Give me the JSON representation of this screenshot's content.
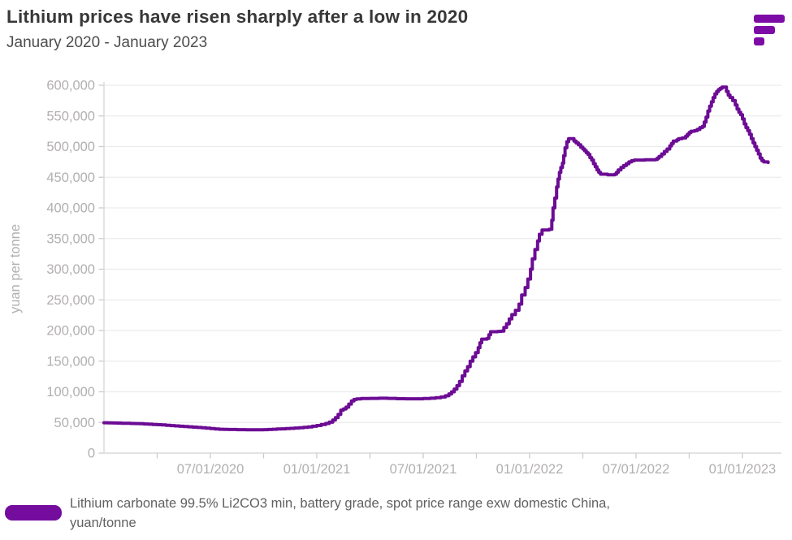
{
  "header": {
    "logo_icon": "fastmarkets-bars-logo",
    "logo_color": "#7d0ba6"
  },
  "chart_data": {
    "type": "line",
    "step": true,
    "title": "Lithium prices have risen sharply after a low in 2020",
    "subtitle": "January 2020 - January 2023",
    "xlabel": "",
    "ylabel": "yuan per tonne",
    "ylim": [
      0,
      600000
    ],
    "ytick_step": 50000,
    "ytick_labels": [
      "0",
      "50,000",
      "100,000",
      "150,000",
      "200,000",
      "250,000",
      "300,000",
      "350,000",
      "400,000",
      "450,000",
      "500,000",
      "550,000",
      "600,000"
    ],
    "x_ticks": [
      {
        "month": 6,
        "label": "07/01/2020"
      },
      {
        "month": 12,
        "label": "01/01/2021"
      },
      {
        "month": 18,
        "label": "07/01/2021"
      },
      {
        "month": 24,
        "label": "01/01/2022"
      },
      {
        "month": 30,
        "label": "07/01/2022"
      },
      {
        "month": 36,
        "label": "01/01/2023"
      }
    ],
    "x_minor_tick_every_months": 3,
    "x_domain_months": [
      0,
      38.2
    ],
    "grid": "horizontal",
    "legend_position": "bottom",
    "legend": {
      "line1": "Lithium carbonate 99.5% Li2CO3 min, battery grade, spot price range exw domestic China,",
      "line2": "yuan/tonne",
      "swatch_color": "#740c9e"
    },
    "series": [
      {
        "name": "Lithium carbonate 99.5% Li2CO3 min, battery grade, spot price range exw domestic China, yuan/tonne",
        "color": "#6c0c94",
        "points_month_value": [
          [
            0,
            49500
          ],
          [
            0.25,
            49300
          ],
          [
            0.5,
            49200
          ],
          [
            0.75,
            49000
          ],
          [
            1,
            48800
          ],
          [
            1.25,
            48600
          ],
          [
            1.5,
            48400
          ],
          [
            1.75,
            48200
          ],
          [
            2,
            48000
          ],
          [
            2.25,
            47600
          ],
          [
            2.5,
            47200
          ],
          [
            2.75,
            46800
          ],
          [
            3,
            46400
          ],
          [
            3.25,
            45900
          ],
          [
            3.5,
            45400
          ],
          [
            3.75,
            44900
          ],
          [
            4,
            44400
          ],
          [
            4.25,
            43900
          ],
          [
            4.5,
            43400
          ],
          [
            4.75,
            42900
          ],
          [
            5,
            42400
          ],
          [
            5.25,
            41900
          ],
          [
            5.5,
            41400
          ],
          [
            5.75,
            40700
          ],
          [
            6,
            40000
          ],
          [
            6.25,
            39400
          ],
          [
            6.5,
            39000
          ],
          [
            6.75,
            38700
          ],
          [
            7,
            38500
          ],
          [
            7.5,
            38300
          ],
          [
            8,
            38200
          ],
          [
            8.5,
            38200
          ],
          [
            9,
            38300
          ],
          [
            9.25,
            38600
          ],
          [
            9.5,
            39000
          ],
          [
            9.75,
            39300
          ],
          [
            10,
            39600
          ],
          [
            10.25,
            40000
          ],
          [
            10.5,
            40400
          ],
          [
            10.75,
            40900
          ],
          [
            11,
            41400
          ],
          [
            11.25,
            42000
          ],
          [
            11.5,
            42800
          ],
          [
            11.75,
            43800
          ],
          [
            12,
            45000
          ],
          [
            12.25,
            46600
          ],
          [
            12.5,
            48400
          ],
          [
            12.7,
            50400
          ],
          [
            12.9,
            54000
          ],
          [
            13.05,
            58000
          ],
          [
            13.2,
            63000
          ],
          [
            13.35,
            70000
          ],
          [
            13.5,
            72000
          ],
          [
            13.65,
            75000
          ],
          [
            13.8,
            80000
          ],
          [
            13.95,
            85000
          ],
          [
            14.1,
            87500
          ],
          [
            14.25,
            88500
          ],
          [
            14.5,
            89000
          ],
          [
            15,
            89300
          ],
          [
            15.5,
            89500
          ],
          [
            16,
            89300
          ],
          [
            16.5,
            88800
          ],
          [
            17,
            88600
          ],
          [
            17.5,
            88600
          ],
          [
            18,
            89000
          ],
          [
            18.4,
            89600
          ],
          [
            18.7,
            90500
          ],
          [
            19,
            91500
          ],
          [
            19.25,
            93500
          ],
          [
            19.45,
            96500
          ],
          [
            19.6,
            100000
          ],
          [
            19.75,
            104500
          ],
          [
            19.9,
            110000
          ],
          [
            20.05,
            117000
          ],
          [
            20.2,
            126000
          ],
          [
            20.35,
            134000
          ],
          [
            20.5,
            141000
          ],
          [
            20.65,
            150000
          ],
          [
            20.8,
            157000
          ],
          [
            20.95,
            164000
          ],
          [
            21.1,
            172000
          ],
          [
            21.2,
            180000
          ],
          [
            21.3,
            186000
          ],
          [
            21.6,
            187000
          ],
          [
            21.7,
            193000
          ],
          [
            21.8,
            198000
          ],
          [
            22.2,
            198500
          ],
          [
            22.4,
            199000
          ],
          [
            22.55,
            205000
          ],
          [
            22.7,
            211000
          ],
          [
            22.85,
            219000
          ],
          [
            23,
            226000
          ],
          [
            23.2,
            233000
          ],
          [
            23.4,
            243000
          ],
          [
            23.55,
            258000
          ],
          [
            23.75,
            270000
          ],
          [
            23.9,
            284000
          ],
          [
            24.05,
            300000
          ],
          [
            24.15,
            317000
          ],
          [
            24.3,
            332000
          ],
          [
            24.45,
            346000
          ],
          [
            24.55,
            357000
          ],
          [
            24.7,
            364000
          ],
          [
            25.1,
            365000
          ],
          [
            25.25,
            380000
          ],
          [
            25.32,
            400000
          ],
          [
            25.42,
            416000
          ],
          [
            25.52,
            434000
          ],
          [
            25.6,
            447000
          ],
          [
            25.68,
            458000
          ],
          [
            25.76,
            466000
          ],
          [
            25.85,
            473000
          ],
          [
            25.92,
            485000
          ],
          [
            26,
            498000
          ],
          [
            26.1,
            508000
          ],
          [
            26.2,
            513000
          ],
          [
            26.35,
            513000
          ],
          [
            26.5,
            509000
          ],
          [
            26.62,
            506000
          ],
          [
            26.75,
            503000
          ],
          [
            26.88,
            499000
          ],
          [
            27,
            496000
          ],
          [
            27.1,
            493000
          ],
          [
            27.2,
            490000
          ],
          [
            27.3,
            487000
          ],
          [
            27.4,
            482000
          ],
          [
            27.5,
            478000
          ],
          [
            27.6,
            472000
          ],
          [
            27.7,
            467000
          ],
          [
            27.8,
            462000
          ],
          [
            27.9,
            458000
          ],
          [
            28,
            455000
          ],
          [
            28.4,
            454000
          ],
          [
            28.8,
            455000
          ],
          [
            28.9,
            458000
          ],
          [
            29,
            462000
          ],
          [
            29.15,
            466000
          ],
          [
            29.3,
            469000
          ],
          [
            29.45,
            472000
          ],
          [
            29.6,
            475000
          ],
          [
            29.75,
            477000
          ],
          [
            29.9,
            478000
          ],
          [
            30.5,
            478500
          ],
          [
            31.1,
            479000
          ],
          [
            31.2,
            481000
          ],
          [
            31.3,
            484000
          ],
          [
            31.45,
            488000
          ],
          [
            31.6,
            492000
          ],
          [
            31.75,
            496000
          ],
          [
            31.9,
            501000
          ],
          [
            32,
            505000
          ],
          [
            32.1,
            509000
          ],
          [
            32.3,
            511000
          ],
          [
            32.4,
            513000
          ],
          [
            32.6,
            514000
          ],
          [
            32.8,
            517000
          ],
          [
            32.9,
            520000
          ],
          [
            33,
            523000
          ],
          [
            33.1,
            525000
          ],
          [
            33.3,
            526000
          ],
          [
            33.45,
            528000
          ],
          [
            33.6,
            531000
          ],
          [
            33.75,
            533000
          ],
          [
            33.85,
            540000
          ],
          [
            33.95,
            548000
          ],
          [
            34.05,
            558000
          ],
          [
            34.15,
            566000
          ],
          [
            34.25,
            573000
          ],
          [
            34.35,
            580000
          ],
          [
            34.45,
            586000
          ],
          [
            34.55,
            590000
          ],
          [
            34.65,
            593000
          ],
          [
            34.75,
            595000
          ],
          [
            34.85,
            597000
          ],
          [
            35,
            597000
          ],
          [
            35.1,
            590000
          ],
          [
            35.2,
            584000
          ],
          [
            35.3,
            580000
          ],
          [
            35.45,
            575000
          ],
          [
            35.6,
            568000
          ],
          [
            35.7,
            561000
          ],
          [
            35.8,
            556000
          ],
          [
            35.9,
            552000
          ],
          [
            36,
            545000
          ],
          [
            36.1,
            537000
          ],
          [
            36.2,
            531000
          ],
          [
            36.3,
            526000
          ],
          [
            36.4,
            520000
          ],
          [
            36.5,
            513000
          ],
          [
            36.6,
            506000
          ],
          [
            36.7,
            500000
          ],
          [
            36.8,
            494000
          ],
          [
            36.9,
            488000
          ],
          [
            37,
            481000
          ],
          [
            37.1,
            477000
          ],
          [
            37.2,
            475000
          ],
          [
            37.45,
            474000
          ]
        ]
      }
    ],
    "style_colors": {
      "grid": "#ececec",
      "axis": "#d8d8d8",
      "tick": "#cccccc",
      "tick_label": "#b2afaf",
      "axis_title": "#b2afaf"
    }
  }
}
